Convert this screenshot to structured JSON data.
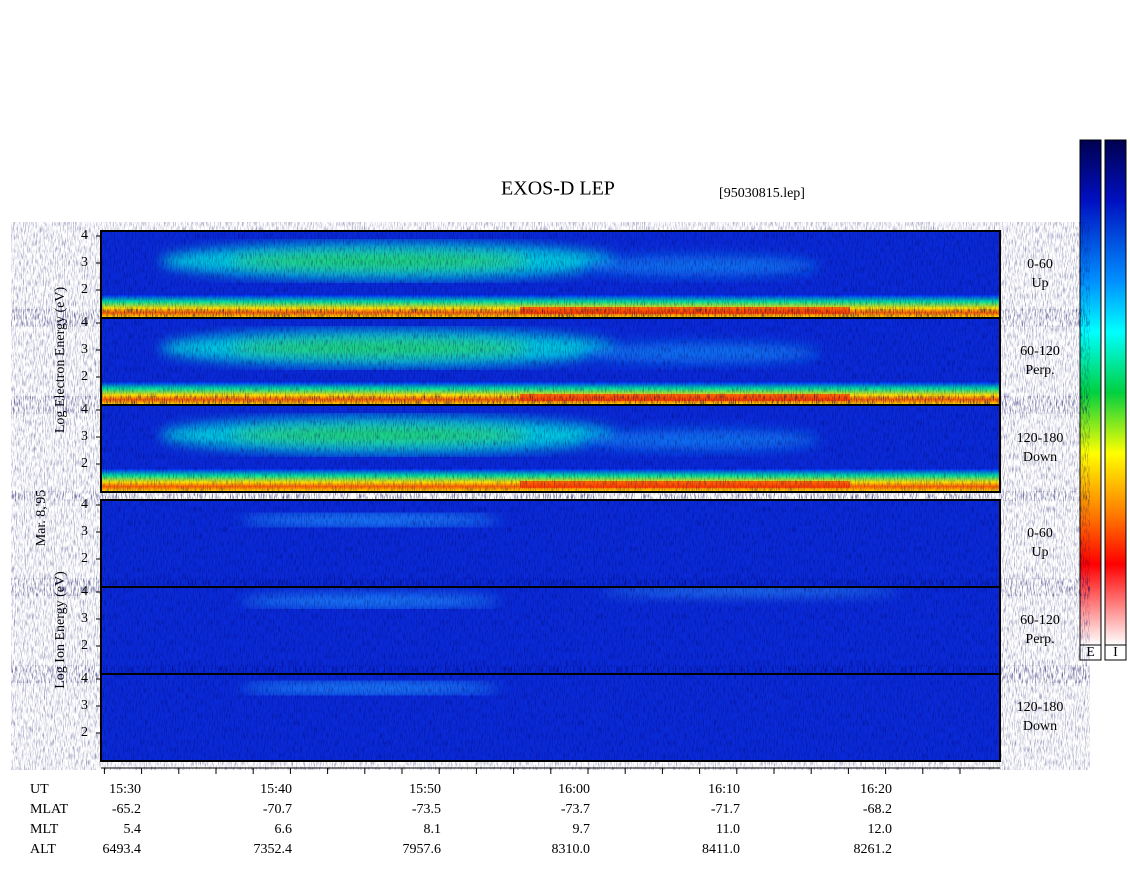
{
  "header": {
    "title": "EXOS-D LEP",
    "file": "[95030815.lep]"
  },
  "date": "Mar. 8,'95",
  "electron": {
    "axis_label": "Log  Electron  Energy (eV)",
    "panels": [
      {
        "angle": "0-60",
        "direction": "Up",
        "ticks": [
          "4",
          "3",
          "2"
        ]
      },
      {
        "angle": "60-120",
        "direction": "Perp.",
        "ticks": [
          "4",
          "3",
          "2"
        ]
      },
      {
        "angle": "120-180",
        "direction": "Down",
        "ticks": [
          "4",
          "3",
          "2"
        ]
      }
    ]
  },
  "ion": {
    "axis_label": "Log  Ion  Energy  (eV)",
    "panels": [
      {
        "angle": "0-60",
        "direction": "Up",
        "ticks": [
          "4",
          "3",
          "2"
        ]
      },
      {
        "angle": "60-120",
        "direction": "Perp.",
        "ticks": [
          "4",
          "3",
          "2"
        ]
      },
      {
        "angle": "120-180",
        "direction": "Down",
        "ticks": [
          "4",
          "3",
          "2"
        ]
      }
    ]
  },
  "orbit": {
    "rows": [
      {
        "label": "UT",
        "values": [
          "15:30",
          "15:40",
          "15:50",
          "16:00",
          "16:10",
          "16:20"
        ]
      },
      {
        "label": "MLAT",
        "values": [
          "-65.2",
          "-70.7",
          "-73.5",
          "-73.7",
          "-71.7",
          "-68.2"
        ]
      },
      {
        "label": "MLT",
        "values": [
          "5.4",
          "6.6",
          "8.1",
          "9.7",
          "11.0",
          "12.0"
        ]
      },
      {
        "label": "ALT",
        "values": [
          "6493.4",
          "7352.4",
          "7957.6",
          "8310.0",
          "8411.0",
          "8261.2"
        ]
      }
    ]
  },
  "colorbar": {
    "labels": [
      "E",
      "I"
    ]
  }
}
